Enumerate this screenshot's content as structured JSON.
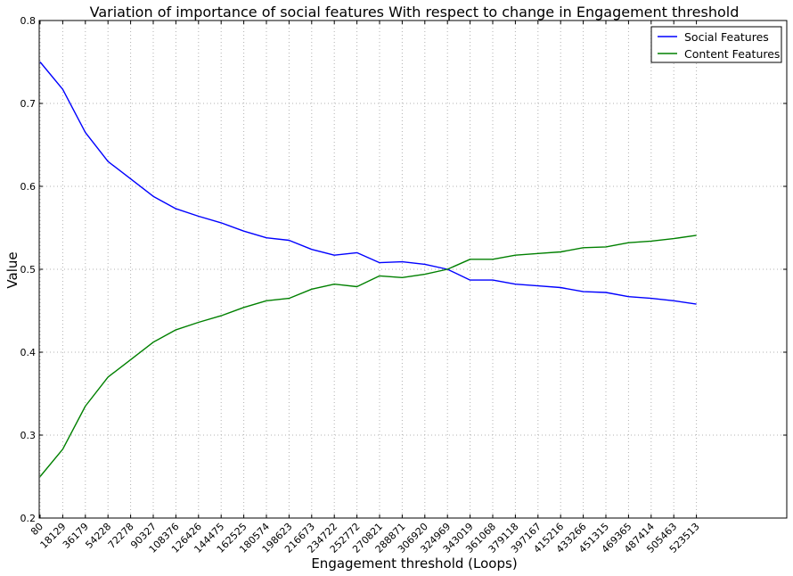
{
  "chart_data": {
    "type": "line",
    "title": "Variation of importance of social features With respect to change in Engagement threshold",
    "xlabel": "Engagement threshold (Loops)",
    "ylabel": "Value",
    "categories": [
      "80",
      "18129",
      "36179",
      "54228",
      "72278",
      "90327",
      "108376",
      "126426",
      "144475",
      "162525",
      "180574",
      "198623",
      "216673",
      "234722",
      "252772",
      "270821",
      "288871",
      "306920",
      "324969",
      "343019",
      "361068",
      "379118",
      "397167",
      "415216",
      "433266",
      "451315",
      "469365",
      "487414",
      "505463",
      "523513"
    ],
    "ylim": [
      0.2,
      0.8
    ],
    "yticks": [
      0.2,
      0.3,
      0.4,
      0.5,
      0.6,
      0.7,
      0.8
    ],
    "ytick_labels": [
      "0.2",
      "0.3",
      "0.4",
      "0.5",
      "0.6",
      "0.7",
      "0.8"
    ],
    "grid": true,
    "legend_position": "top-right",
    "series": [
      {
        "name": "Social Features",
        "color": "#0000ff",
        "values": [
          0.75,
          0.717,
          0.665,
          0.63,
          0.609,
          0.588,
          0.573,
          0.564,
          0.556,
          0.546,
          0.538,
          0.535,
          0.524,
          0.517,
          0.52,
          0.508,
          0.509,
          0.506,
          0.5,
          0.487,
          0.487,
          0.482,
          0.48,
          0.478,
          0.473,
          0.472,
          0.467,
          0.465,
          0.462,
          0.458
        ]
      },
      {
        "name": "Content Features",
        "color": "#008000",
        "values": [
          0.25,
          0.283,
          0.335,
          0.37,
          0.391,
          0.412,
          0.427,
          0.436,
          0.444,
          0.454,
          0.462,
          0.465,
          0.476,
          0.482,
          0.479,
          0.492,
          0.49,
          0.494,
          0.5,
          0.512,
          0.512,
          0.517,
          0.519,
          0.521,
          0.526,
          0.527,
          0.532,
          0.534,
          0.537,
          0.541
        ]
      }
    ]
  }
}
